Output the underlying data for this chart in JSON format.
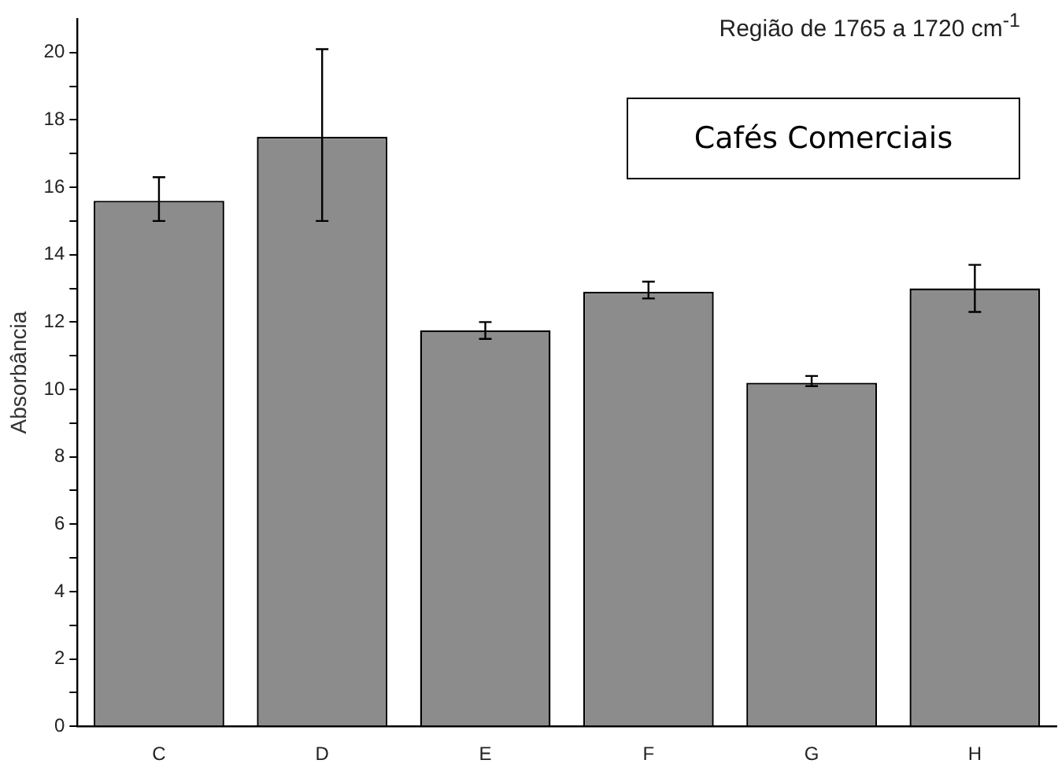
{
  "chart_data": {
    "type": "bar",
    "title": "Região de 1765 a 1720 cm$^{-1}$",
    "ylabel": "Absorbância",
    "annotations": [
      "Cafés Comerciais"
    ],
    "categories": [
      "C",
      "D",
      "E",
      "F",
      "G",
      "H"
    ],
    "values": [
      15.6,
      17.5,
      11.75,
      12.9,
      10.2,
      13.0
    ],
    "errors": [
      [
        15.0,
        16.3
      ],
      [
        15.0,
        20.1
      ],
      [
        11.5,
        12.0
      ],
      [
        12.7,
        13.2
      ],
      [
        10.1,
        10.4
      ],
      [
        12.3,
        13.7
      ]
    ],
    "color": "#8c8c8c",
    "ylim": [
      0,
      21
    ],
    "yticks": [
      0,
      {
        "value": 1,
        "label": null
      },
      2,
      {
        "value": 3,
        "label": null
      },
      4,
      {
        "value": 5,
        "label": null
      },
      6,
      {
        "value": 7,
        "label": null
      },
      8,
      {
        "value": 9,
        "label": null
      },
      10,
      {
        "value": 11,
        "label": null
      },
      12,
      {
        "value": 13,
        "label": null
      },
      14,
      {
        "value": 15,
        "label": null
      },
      16,
      {
        "value": 17,
        "label": null
      },
      18,
      {
        "value": 19,
        "label": null
      },
      20
    ],
    "grid": false,
    "legend": false
  }
}
